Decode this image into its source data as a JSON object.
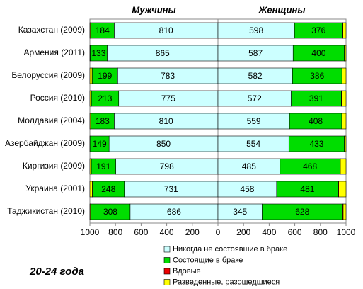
{
  "chart_data": {
    "type": "bar",
    "orientation": "horizontal",
    "stacked": true,
    "categories": [
      "Казахстан (2009)",
      "Армения (2011)",
      "Белоруссия (2009)",
      "Россия (2010)",
      "Молдавия (2004)",
      "Азербайджан (2009)",
      "Киргизия (2009)",
      "Украина (2001)",
      "Таджикистан (2010)"
    ],
    "series": [
      {
        "name": "Никогда  не состоявшие в браке",
        "color": "#ccffff"
      },
      {
        "name": "Состоящие в браке",
        "color": "#00dd00"
      },
      {
        "name": "Вдовые",
        "color": "#ee0000"
      },
      {
        "name": "Разведенные, разошедшиеся",
        "color": "#ffff00"
      }
    ],
    "panels": [
      {
        "title": "Мужчины",
        "xlim": [
          1000,
          0
        ],
        "xticks": [
          1000,
          800,
          600,
          400,
          200
        ],
        "values": [
          [
            810,
            865,
            783,
            775,
            810,
            850,
            798,
            731,
            686
          ],
          [
            184,
            133,
            199,
            213,
            183,
            149,
            191,
            248,
            308
          ],
          [
            1,
            0,
            1,
            1,
            1,
            0,
            1,
            2,
            1
          ],
          [
            5,
            2,
            17,
            11,
            6,
            1,
            10,
            19,
            5
          ]
        ]
      },
      {
        "title": "Женщины",
        "xlim": [
          0,
          1000
        ],
        "xticks": [
          0,
          200,
          400,
          600,
          800,
          1000
        ],
        "values": [
          [
            598,
            587,
            582,
            572,
            559,
            554,
            485,
            458,
            345
          ],
          [
            376,
            400,
            386,
            391,
            408,
            433,
            468,
            481,
            628
          ],
          [
            2,
            1,
            2,
            3,
            3,
            2,
            3,
            4,
            5
          ],
          [
            24,
            12,
            30,
            34,
            30,
            11,
            44,
            57,
            22
          ]
        ]
      }
    ],
    "labeled_series": [
      0,
      1
    ],
    "annotation": "20-24 года"
  }
}
